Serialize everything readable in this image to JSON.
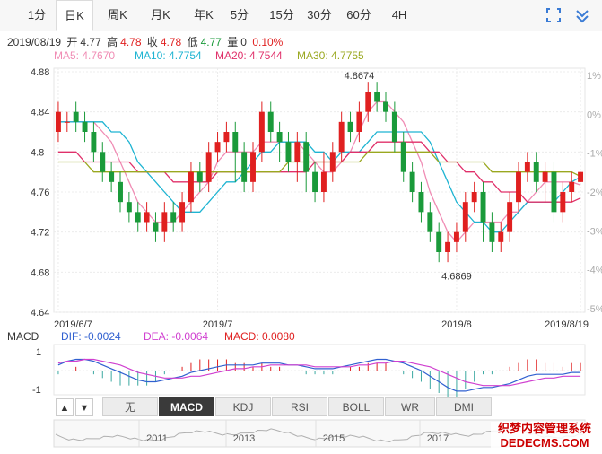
{
  "tabs": [
    "1分",
    "日K",
    "周K",
    "月K",
    "年K",
    "5分",
    "15分",
    "30分",
    "60分",
    "4H"
  ],
  "active_tab": "日K",
  "info": {
    "date": "2019/08/19",
    "open_label": "开",
    "open": "4.77",
    "high_label": "高",
    "high": "4.78",
    "close_label": "收",
    "close": "4.78",
    "low_label": "低",
    "low": "4.77",
    "vol_label": "量",
    "vol": "0",
    "change": "0.10%"
  },
  "ma": {
    "ma5": "MA5: 4.7670",
    "ma10": "MA10: 4.7754",
    "ma20": "MA20: 4.7544",
    "ma30": "MA30: 4.7755"
  },
  "macd_labels": {
    "title": "MACD",
    "dif": "DIF: -0.0024",
    "dea": "DEA: -0.0064",
    "macd": "MACD: 0.0080"
  },
  "indicators": [
    "无",
    "MACD",
    "KDJ",
    "RSI",
    "BOLL",
    "WR",
    "DMI"
  ],
  "active_indicator": "MACD",
  "nav": {
    "up": "▲",
    "down": "▼"
  },
  "overview_years": [
    "2011",
    "2013",
    "2015",
    "2017"
  ],
  "watermark_line1": "织梦内容管理系统",
  "watermark_line2": "DEDECMS.COM",
  "colors": {
    "up": "#e02020",
    "down": "#1a9a3a",
    "ma5": "#f08cb4",
    "ma10": "#1eb4d2",
    "ma20": "#e0306a",
    "ma30": "#9aa820",
    "dif": "#3060d0",
    "dea": "#d040d0"
  },
  "chart_data": {
    "type": "candlestick",
    "y_ticks": [
      "4.88",
      "4.84",
      "4.8",
      "4.76",
      "4.72",
      "4.68",
      "4.64"
    ],
    "y_ticks_values": [
      4.88,
      4.84,
      4.8,
      4.76,
      4.72,
      4.68,
      4.64
    ],
    "ylim": [
      4.64,
      4.88
    ],
    "pct_ticks": [
      "1%",
      "0%",
      "-1%",
      "-2%",
      "-3%",
      "-4%",
      "-5%"
    ],
    "x_ticks": [
      "2019/6/7",
      "2019/7",
      "2019/8",
      "2019/8/19"
    ],
    "x_tick_index": [
      0,
      18,
      45,
      59
    ],
    "annotations": [
      {
        "text": "4.8674",
        "index": 34,
        "value": 4.8674,
        "kind": "max"
      },
      {
        "text": "4.6869",
        "index": 45,
        "value": 4.6869,
        "kind": "min"
      }
    ],
    "candles": [
      [
        4.82,
        4.84,
        4.85,
        4.81
      ],
      [
        4.83,
        4.83,
        4.84,
        4.82
      ],
      [
        4.84,
        4.83,
        4.85,
        4.82
      ],
      [
        4.83,
        4.82,
        4.84,
        4.81
      ],
      [
        4.82,
        4.8,
        4.83,
        4.79
      ],
      [
        4.8,
        4.78,
        4.81,
        4.77
      ],
      [
        4.78,
        4.77,
        4.79,
        4.76
      ],
      [
        4.77,
        4.75,
        4.78,
        4.74
      ],
      [
        4.75,
        4.74,
        4.76,
        4.73
      ],
      [
        4.74,
        4.73,
        4.75,
        4.72
      ],
      [
        4.73,
        4.74,
        4.75,
        4.72
      ],
      [
        4.73,
        4.72,
        4.74,
        4.71
      ],
      [
        4.72,
        4.74,
        4.75,
        4.71
      ],
      [
        4.74,
        4.73,
        4.75,
        4.72
      ],
      [
        4.73,
        4.75,
        4.76,
        4.72
      ],
      [
        4.75,
        4.78,
        4.79,
        4.74
      ],
      [
        4.78,
        4.77,
        4.79,
        4.76
      ],
      [
        4.77,
        4.8,
        4.81,
        4.76
      ],
      [
        4.8,
        4.81,
        4.82,
        4.79
      ],
      [
        4.81,
        4.82,
        4.83,
        4.8
      ],
      [
        4.82,
        4.8,
        4.83,
        4.77
      ],
      [
        4.8,
        4.77,
        4.81,
        4.76
      ],
      [
        4.77,
        4.8,
        4.81,
        4.76
      ],
      [
        4.8,
        4.84,
        4.85,
        4.79
      ],
      [
        4.84,
        4.82,
        4.85,
        4.81
      ],
      [
        4.82,
        4.81,
        4.83,
        4.79
      ],
      [
        4.81,
        4.79,
        4.82,
        4.78
      ],
      [
        4.79,
        4.81,
        4.82,
        4.77
      ],
      [
        4.81,
        4.78,
        4.82,
        4.76
      ],
      [
        4.78,
        4.76,
        4.79,
        4.75
      ],
      [
        4.76,
        4.78,
        4.8,
        4.75
      ],
      [
        4.78,
        4.8,
        4.81,
        4.77
      ],
      [
        4.8,
        4.83,
        4.84,
        4.79
      ],
      [
        4.83,
        4.82,
        4.84,
        4.81
      ],
      [
        4.82,
        4.84,
        4.85,
        4.81
      ],
      [
        4.84,
        4.86,
        4.87,
        4.83
      ],
      [
        4.86,
        4.85,
        4.87,
        4.84
      ],
      [
        4.85,
        4.84,
        4.86,
        4.83
      ],
      [
        4.84,
        4.81,
        4.85,
        4.8
      ],
      [
        4.81,
        4.78,
        4.82,
        4.77
      ],
      [
        4.78,
        4.76,
        4.79,
        4.75
      ],
      [
        4.76,
        4.74,
        4.77,
        4.73
      ],
      [
        4.74,
        4.72,
        4.75,
        4.71
      ],
      [
        4.72,
        4.7,
        4.73,
        4.69
      ],
      [
        4.7,
        4.71,
        4.72,
        4.69
      ],
      [
        4.71,
        4.72,
        4.73,
        4.7
      ],
      [
        4.72,
        4.75,
        4.76,
        4.71
      ],
      [
        4.75,
        4.76,
        4.77,
        4.74
      ],
      [
        4.76,
        4.73,
        4.77,
        4.71
      ],
      [
        4.73,
        4.71,
        4.74,
        4.7
      ],
      [
        4.71,
        4.72,
        4.73,
        4.7
      ],
      [
        4.72,
        4.75,
        4.76,
        4.71
      ],
      [
        4.75,
        4.78,
        4.79,
        4.74
      ],
      [
        4.78,
        4.79,
        4.8,
        4.77
      ],
      [
        4.79,
        4.77,
        4.8,
        4.76
      ],
      [
        4.77,
        4.78,
        4.79,
        4.75
      ],
      [
        4.78,
        4.74,
        4.79,
        4.73
      ],
      [
        4.74,
        4.76,
        4.77,
        4.73
      ],
      [
        4.76,
        4.77,
        4.78,
        4.75
      ],
      [
        4.77,
        4.78,
        4.78,
        4.77
      ]
    ],
    "ma_series": [
      {
        "name": "MA5",
        "values": [
          4.83,
          4.83,
          4.83,
          4.83,
          4.83,
          4.82,
          4.81,
          4.79,
          4.77,
          4.75,
          4.74,
          4.73,
          4.73,
          4.73,
          4.74,
          4.75,
          4.76,
          4.77,
          4.79,
          4.8,
          4.8,
          4.8,
          4.8,
          4.81,
          4.81,
          4.81,
          4.81,
          4.81,
          4.8,
          4.79,
          4.78,
          4.78,
          4.79,
          4.8,
          4.82,
          4.84,
          4.85,
          4.85,
          4.84,
          4.83,
          4.81,
          4.79,
          4.76,
          4.74,
          4.72,
          4.71,
          4.72,
          4.73,
          4.73,
          4.73,
          4.73,
          4.74,
          4.74,
          4.75,
          4.76,
          4.77,
          4.77,
          4.77,
          4.77,
          4.767
        ]
      },
      {
        "name": "MA10",
        "values": [
          4.83,
          4.83,
          4.83,
          4.83,
          4.83,
          4.83,
          4.82,
          4.82,
          4.81,
          4.79,
          4.78,
          4.77,
          4.76,
          4.75,
          4.74,
          4.74,
          4.74,
          4.75,
          4.76,
          4.77,
          4.77,
          4.78,
          4.79,
          4.8,
          4.8,
          4.81,
          4.81,
          4.81,
          4.81,
          4.8,
          4.8,
          4.79,
          4.8,
          4.8,
          4.8,
          4.81,
          4.82,
          4.82,
          4.82,
          4.82,
          4.82,
          4.82,
          4.81,
          4.79,
          4.77,
          4.75,
          4.74,
          4.73,
          4.73,
          4.72,
          4.72,
          4.73,
          4.74,
          4.75,
          4.75,
          4.75,
          4.75,
          4.76,
          4.77,
          4.775
        ]
      },
      {
        "name": "MA20",
        "values": [
          4.8,
          4.8,
          4.8,
          4.79,
          4.79,
          4.79,
          4.79,
          4.79,
          4.79,
          4.78,
          4.78,
          4.78,
          4.78,
          4.77,
          4.77,
          4.77,
          4.77,
          4.77,
          4.78,
          4.78,
          4.78,
          4.78,
          4.78,
          4.78,
          4.78,
          4.78,
          4.78,
          4.78,
          4.78,
          4.79,
          4.79,
          4.79,
          4.79,
          4.8,
          4.8,
          4.8,
          4.81,
          4.81,
          4.81,
          4.81,
          4.81,
          4.81,
          4.8,
          4.8,
          4.79,
          4.79,
          4.78,
          4.78,
          4.77,
          4.77,
          4.76,
          4.76,
          4.76,
          4.75,
          4.75,
          4.75,
          4.75,
          4.75,
          4.75,
          4.754
        ]
      },
      {
        "name": "MA30",
        "values": [
          4.79,
          4.79,
          4.79,
          4.79,
          4.78,
          4.78,
          4.78,
          4.78,
          4.78,
          4.78,
          4.78,
          4.78,
          4.78,
          4.78,
          4.78,
          4.78,
          4.78,
          4.78,
          4.78,
          4.78,
          4.78,
          4.78,
          4.78,
          4.78,
          4.78,
          4.78,
          4.79,
          4.79,
          4.79,
          4.79,
          4.79,
          4.79,
          4.79,
          4.79,
          4.79,
          4.8,
          4.8,
          4.8,
          4.8,
          4.8,
          4.8,
          4.8,
          4.8,
          4.79,
          4.79,
          4.79,
          4.79,
          4.79,
          4.79,
          4.78,
          4.78,
          4.78,
          4.78,
          4.78,
          4.78,
          4.78,
          4.78,
          4.78,
          4.78,
          4.7755
        ]
      }
    ],
    "macd": {
      "y_ticks": [
        "1",
        "-1"
      ],
      "dif": [
        0.3,
        0.5,
        0.6,
        0.6,
        0.5,
        0.3,
        0.1,
        -0.1,
        -0.3,
        -0.5,
        -0.6,
        -0.6,
        -0.5,
        -0.4,
        -0.3,
        -0.1,
        0.0,
        0.1,
        0.2,
        0.3,
        0.3,
        0.3,
        0.3,
        0.4,
        0.4,
        0.4,
        0.3,
        0.3,
        0.2,
        0.1,
        0.1,
        0.1,
        0.2,
        0.3,
        0.4,
        0.5,
        0.6,
        0.6,
        0.5,
        0.4,
        0.2,
        0.0,
        -0.3,
        -0.6,
        -0.9,
        -1.1,
        -1.1,
        -1.0,
        -0.9,
        -0.9,
        -0.8,
        -0.7,
        -0.5,
        -0.3,
        -0.2,
        -0.2,
        -0.2,
        -0.2,
        -0.1,
        -0.1
      ],
      "dea": [
        0.4,
        0.5,
        0.5,
        0.6,
        0.6,
        0.5,
        0.4,
        0.3,
        0.1,
        -0.1,
        -0.2,
        -0.3,
        -0.4,
        -0.4,
        -0.4,
        -0.3,
        -0.3,
        -0.2,
        -0.1,
        0.0,
        0.1,
        0.1,
        0.2,
        0.2,
        0.3,
        0.3,
        0.3,
        0.3,
        0.3,
        0.2,
        0.2,
        0.2,
        0.2,
        0.2,
        0.3,
        0.3,
        0.4,
        0.4,
        0.5,
        0.5,
        0.4,
        0.3,
        0.2,
        0.0,
        -0.2,
        -0.4,
        -0.6,
        -0.7,
        -0.8,
        -0.8,
        -0.8,
        -0.8,
        -0.7,
        -0.6,
        -0.5,
        -0.4,
        -0.4,
        -0.3,
        -0.3,
        -0.3
      ]
    }
  }
}
